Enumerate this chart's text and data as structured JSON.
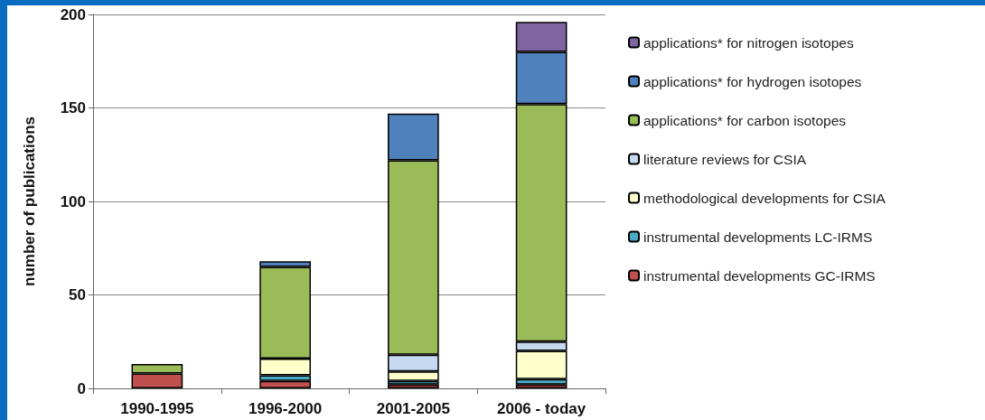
{
  "chart_data": {
    "type": "bar",
    "stacked": true,
    "ylabel": "number of publications",
    "categories": [
      "1990-1995",
      "1996-2000",
      "2001-2005",
      "2006 - today"
    ],
    "series": [
      {
        "name": "instrumental developments GC-IRMS",
        "color": "#c0504d",
        "values": [
          8,
          4,
          2,
          2
        ]
      },
      {
        "name": "instrumental developments LC-IRMS",
        "color": "#4bacc6",
        "values": [
          null,
          3,
          2,
          3
        ]
      },
      {
        "name": "methodological developments for CSIA",
        "color": "#ffffcc",
        "values": [
          null,
          9,
          5,
          15
        ]
      },
      {
        "name": "literature reviews for CSIA",
        "color": "#c6d9f1",
        "values": [
          null,
          null,
          9,
          5
        ]
      },
      {
        "name": "applications* for carbon isotopes",
        "color": "#9bbb59",
        "values": [
          5,
          49,
          104,
          127
        ]
      },
      {
        "name": "applications* for hydrogen isotopes",
        "color": "#4f81bd",
        "values": [
          null,
          3,
          25,
          28
        ]
      },
      {
        "name": "applications* for nitrogen isotopes",
        "color": "#8064a2",
        "values": [
          null,
          null,
          null,
          16
        ]
      }
    ],
    "ylim": [
      0,
      200
    ],
    "yticks": [
      0,
      50,
      100,
      150,
      200
    ],
    "grid": "y",
    "legend": "right"
  }
}
